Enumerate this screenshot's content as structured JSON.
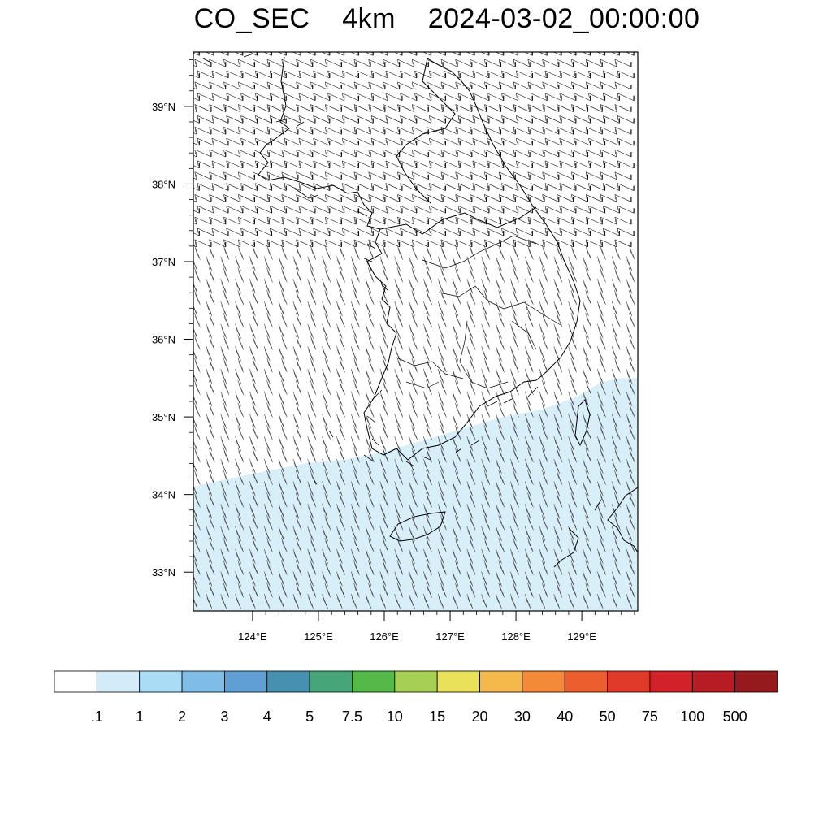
{
  "title": "CO_SEC    4km    2024-03-02_00:00:00",
  "map": {
    "lat_range": [
      32.5,
      39.7
    ],
    "lon_range": [
      123.1,
      129.85
    ],
    "lat_ticks": [
      {
        "value": 33,
        "label": "33°N"
      },
      {
        "value": 34,
        "label": "34°N"
      },
      {
        "value": 35,
        "label": "35°N"
      },
      {
        "value": 36,
        "label": "36°N"
      },
      {
        "value": 37,
        "label": "37°N"
      },
      {
        "value": 38,
        "label": "38°N"
      },
      {
        "value": 39,
        "label": "39°N"
      }
    ],
    "lon_ticks": [
      {
        "value": 124,
        "label": "124°E"
      },
      {
        "value": 125,
        "label": "125°E"
      },
      {
        "value": 126,
        "label": "126°E"
      },
      {
        "value": 127,
        "label": "127°E"
      },
      {
        "value": 128,
        "label": "128°E"
      },
      {
        "value": 129,
        "label": "129°E"
      }
    ],
    "shaded_field": {
      "description_level": ".1 to 1",
      "fill_color": "#d8eef9",
      "boundary_lonlat": [
        [
          123.1,
          34.1
        ],
        [
          123.6,
          34.2
        ],
        [
          124.2,
          34.3
        ],
        [
          124.8,
          34.4
        ],
        [
          125.4,
          34.45
        ],
        [
          126.0,
          34.55
        ],
        [
          126.6,
          34.7
        ],
        [
          127.2,
          34.85
        ],
        [
          127.8,
          35.0
        ],
        [
          128.4,
          35.1
        ],
        [
          128.9,
          35.25
        ],
        [
          129.3,
          35.45
        ],
        [
          129.6,
          35.5
        ],
        [
          129.85,
          35.5
        ],
        [
          129.85,
          32.5
        ],
        [
          123.1,
          32.5
        ]
      ]
    },
    "wind_barbs": {
      "spacing_lon": 0.22,
      "spacing_lat": 0.145,
      "north_direction_from": "WNW",
      "south_direction_from": "NNW"
    }
  },
  "colorbar": {
    "colors": [
      "#ffffff",
      "#d4ecf9",
      "#aadcf5",
      "#7fbde6",
      "#5f9fd3",
      "#4791b0",
      "#47a57a",
      "#55b94a",
      "#a6cf55",
      "#e9e15a",
      "#f5b84a",
      "#f28a3a",
      "#ec5e2e",
      "#e03a2b",
      "#d22129",
      "#b71c24",
      "#951a1d"
    ],
    "labels": [
      ".1",
      "1",
      "2",
      "3",
      "4",
      "5",
      "7.5",
      "10",
      "15",
      "20",
      "30",
      "40",
      "50",
      "75",
      "100",
      "500"
    ]
  }
}
